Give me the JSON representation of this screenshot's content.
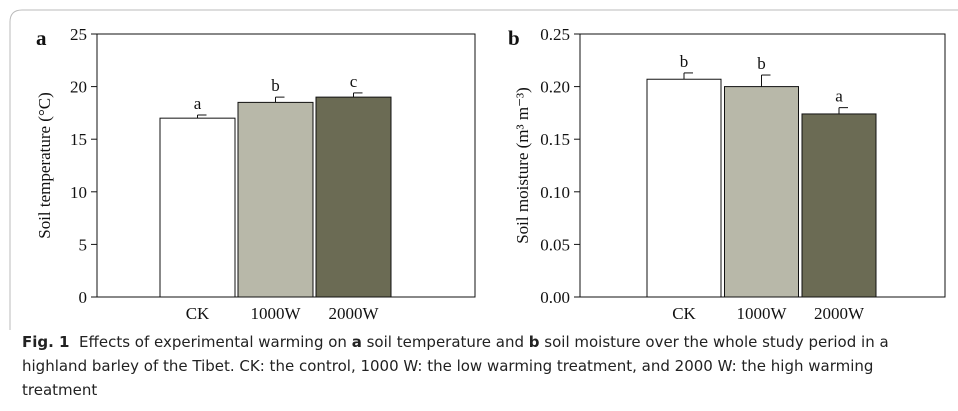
{
  "chart_data": [
    {
      "type": "bar",
      "panel": "a",
      "y_label": "Soil temperature (°C)",
      "categories": [
        "CK",
        "1000W",
        "2000W"
      ],
      "values": [
        17.0,
        18.5,
        19.0
      ],
      "errors": [
        0.3,
        0.5,
        0.4
      ],
      "significance": [
        "a",
        "b",
        "c"
      ],
      "colors": [
        "#ffffff",
        "#b8b8a9",
        "#6b6b54"
      ],
      "ylim": [
        0,
        25
      ],
      "yticks": [
        0,
        5,
        10,
        15,
        20,
        25
      ]
    },
    {
      "type": "bar",
      "panel": "b",
      "y_label": "Soil moisture (m³ m⁻³)",
      "categories": [
        "CK",
        "1000W",
        "2000W"
      ],
      "values": [
        0.207,
        0.2,
        0.174
      ],
      "errors": [
        0.006,
        0.011,
        0.006
      ],
      "significance": [
        "b",
        "b",
        "a"
      ],
      "colors": [
        "#ffffff",
        "#b8b8a9",
        "#6b6b54"
      ],
      "ylim": [
        0,
        0.25
      ],
      "yticks": [
        {
          "value": 0,
          "label": "0.00"
        },
        0.05,
        {
          "value": 0.1,
          "label": "0.10"
        },
        0.15,
        {
          "value": 0.2,
          "label": "0.20"
        },
        0.25
      ]
    }
  ],
  "caption": {
    "label": "Fig. 1",
    "text": [
      "Effects of experimental warming on",
      "a",
      "soil temperature and",
      "b",
      "soil moisture over the whole study period in a highland barley of the Tibet. CK: the control, 1000 W: the low warming treatment, and 2000 W: the high warming treatment"
    ]
  }
}
